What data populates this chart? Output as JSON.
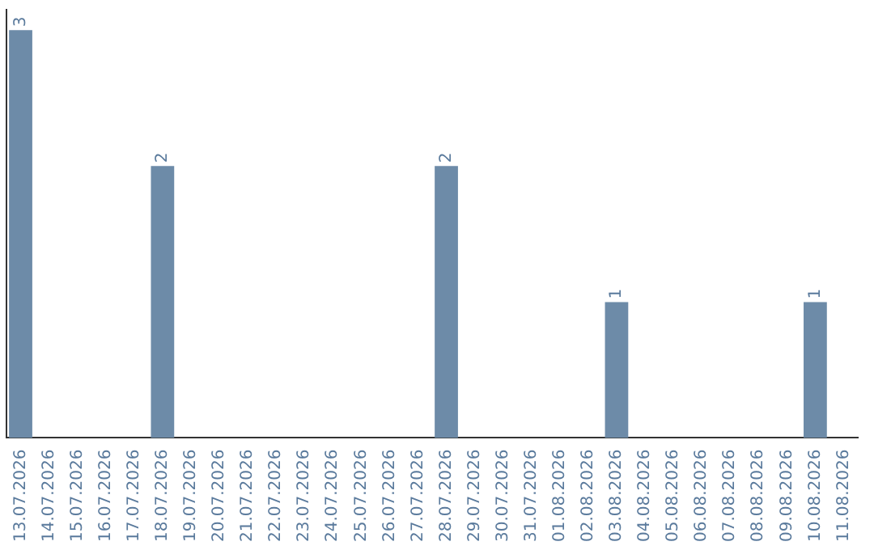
{
  "chart_data": {
    "type": "bar",
    "categories": [
      "13.07.2026",
      "14.07.2026",
      "15.07.2026",
      "16.07.2026",
      "17.07.2026",
      "18.07.2026",
      "19.07.2026",
      "20.07.2026",
      "21.07.2026",
      "22.07.2026",
      "23.07.2026",
      "24.07.2026",
      "25.07.2026",
      "26.07.2026",
      "27.07.2026",
      "28.07.2026",
      "29.07.2026",
      "30.07.2026",
      "31.07.2026",
      "01.08.2026",
      "02.08.2026",
      "03.08.2026",
      "04.08.2026",
      "05.08.2026",
      "06.08.2026",
      "07.08.2026",
      "08.08.2026",
      "09.08.2026",
      "10.08.2026",
      "11.08.2026"
    ],
    "values": [
      3,
      0,
      0,
      0,
      0,
      2,
      0,
      0,
      0,
      0,
      0,
      0,
      0,
      0,
      0,
      2,
      0,
      0,
      0,
      0,
      0,
      1,
      0,
      0,
      0,
      0,
      0,
      0,
      1,
      0
    ],
    "value_labels": [
      "3",
      null,
      null,
      null,
      null,
      "2",
      null,
      null,
      null,
      null,
      null,
      null,
      null,
      null,
      null,
      "2",
      null,
      null,
      null,
      null,
      null,
      "1",
      null,
      null,
      null,
      null,
      null,
      null,
      "1",
      null
    ],
    "color": "#6d8ba8",
    "ylim": [
      0,
      3.15
    ],
    "tick_labels": "x",
    "grid": false,
    "legend": false
  }
}
